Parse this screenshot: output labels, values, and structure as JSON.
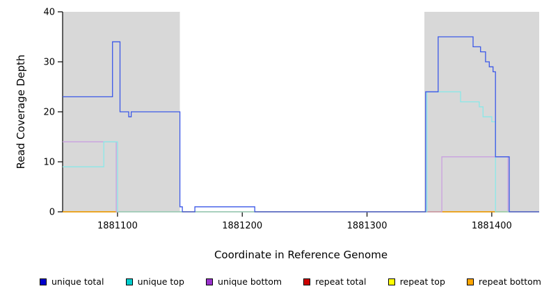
{
  "chart_data": {
    "type": "line",
    "subtype": "step-coverage",
    "title": "",
    "xlabel": "Coordinate in Reference Genome",
    "ylabel": "Read Coverage Depth",
    "xlim": [
      1881056,
      1881438
    ],
    "ylim": [
      0,
      40
    ],
    "xticks": [
      1881100,
      1881200,
      1881300,
      1881400
    ],
    "yticks": [
      0,
      10,
      20,
      30,
      40
    ],
    "grid": false,
    "legend_position": "bottom",
    "background_color": "#ffffff",
    "shade_color": "#d8d8d8",
    "shaded_regions": [
      [
        1881056,
        1881150
      ],
      [
        1881346,
        1881438
      ]
    ],
    "series": [
      {
        "id": "unique-total",
        "name": "unique total",
        "color": "#3a57e8",
        "swatch": "#0000cd",
        "steps": [
          [
            1881056,
            23
          ],
          [
            1881096,
            34
          ],
          [
            1881102,
            20
          ],
          [
            1881109,
            19
          ],
          [
            1881111,
            20
          ],
          [
            1881150,
            1
          ],
          [
            1881152,
            0
          ],
          [
            1881162,
            1
          ],
          [
            1881210,
            0
          ],
          [
            1881347,
            24
          ],
          [
            1881357,
            35
          ],
          [
            1881385,
            33
          ],
          [
            1881391,
            32
          ],
          [
            1881395,
            30
          ],
          [
            1881398,
            29
          ],
          [
            1881401,
            28
          ],
          [
            1881403,
            11
          ],
          [
            1881414,
            0
          ]
        ]
      },
      {
        "id": "unique-top",
        "name": "unique top",
        "color": "#8ae8e8",
        "swatch": "#00cdcd",
        "steps": [
          [
            1881056,
            9
          ],
          [
            1881089,
            14
          ],
          [
            1881100,
            0
          ],
          [
            1881348,
            24
          ],
          [
            1881375,
            22
          ],
          [
            1881390,
            21
          ],
          [
            1881393,
            19
          ],
          [
            1881400,
            18
          ],
          [
            1881403,
            0
          ]
        ]
      },
      {
        "id": "unique-bottom",
        "name": "unique bottom",
        "color": "#c9a0e0",
        "swatch": "#9932cc",
        "steps": [
          [
            1881056,
            14
          ],
          [
            1881099,
            0
          ],
          [
            1881360,
            11
          ],
          [
            1881413,
            0
          ]
        ]
      },
      {
        "id": "repeat-total",
        "name": "repeat total",
        "color": "#cc2222",
        "swatch": "#cc0000",
        "steps": [
          [
            1881056,
            0
          ]
        ]
      },
      {
        "id": "repeat-top",
        "name": "repeat top",
        "color": "#ffff00",
        "swatch": "#ffff00",
        "steps": [
          [
            1881056,
            0
          ]
        ]
      },
      {
        "id": "repeat-bottom",
        "name": "repeat bottom",
        "color": "#ffa500",
        "swatch": "#ffa500",
        "steps": [
          [
            1881056,
            0
          ]
        ]
      }
    ]
  }
}
